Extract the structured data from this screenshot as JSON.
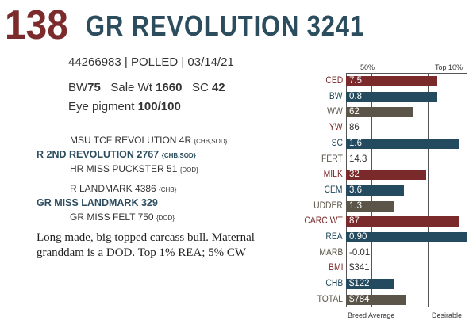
{
  "header": {
    "lot": "138",
    "name": "GR REVOLUTION 3241"
  },
  "meta": "44266983 | POLLED | 03/14/21",
  "epds": {
    "bw_label": "BW",
    "bw": "75",
    "sale_label": "Sale Wt",
    "sale": "1660",
    "sc_label": "SC",
    "sc": "42"
  },
  "eye": {
    "label": "Eye pigment",
    "value": "100/100"
  },
  "pedigree": [
    {
      "name": "MSU TCF REVOLUTION 4R",
      "tag": "{CHB,SOD}",
      "role": "gsire"
    },
    {
      "name": "R 2ND REVOLUTION 2767",
      "tag": "{CHB,SOD}",
      "role": "sire"
    },
    {
      "name": "HR MISS PUCKSTER 51",
      "tag": "{DOD}",
      "role": "gdam"
    },
    {
      "name": "R LANDMARK 4386",
      "tag": "{CHB}",
      "role": "gsire"
    },
    {
      "name": "GR MISS LANDMARK 329",
      "tag": "",
      "role": "dam"
    },
    {
      "name": "GR MISS FELT 750",
      "tag": "{DOD}",
      "role": "gdam"
    }
  ],
  "comment": "Long made, big topped carcass bull. Maternal granddam is a DOD. Top 1% REA; 5% CW",
  "chart_data": {
    "type": "bar",
    "header_left": "50%",
    "header_right": "Top 10%",
    "footer_left": "Breed Average",
    "footer_right": "Desirable",
    "colors": {
      "maroon": "#7a2a2a",
      "navy": "#234a5e",
      "olive": "#5a5548"
    },
    "traits": [
      {
        "label": "CED",
        "value": "7.5",
        "color": "maroon",
        "pct": 0.75
      },
      {
        "label": "BW",
        "value": "0.8",
        "color": "navy",
        "pct": 0.75
      },
      {
        "label": "WW",
        "value": "62",
        "color": "olive",
        "pct": 0.55
      },
      {
        "label": "YW",
        "value": "86",
        "color": "maroon",
        "pct": 0
      },
      {
        "label": "SC",
        "value": "1.6",
        "color": "navy",
        "pct": 0.93
      },
      {
        "label": "FERT",
        "value": "14.3",
        "color": "olive",
        "pct": 0
      },
      {
        "label": "MILK",
        "value": "32",
        "color": "maroon",
        "pct": 0.66
      },
      {
        "label": "CEM",
        "value": "3.6",
        "color": "navy",
        "pct": 0.48
      },
      {
        "label": "UDDER",
        "value": "1.3",
        "color": "olive",
        "pct": 0.4
      },
      {
        "label": "CARC WT",
        "value": "87",
        "color": "maroon",
        "pct": 0.93
      },
      {
        "label": "REA",
        "value": "0.90",
        "color": "navy",
        "pct": 1.0
      },
      {
        "label": "MARB",
        "value": "-0.01",
        "color": "olive",
        "pct": 0
      },
      {
        "label": "BMI",
        "value": "$341",
        "color": "maroon",
        "pct": 0
      },
      {
        "label": "CHB",
        "value": "$122",
        "color": "navy",
        "pct": 0.4
      },
      {
        "label": "TOTAL",
        "value": "$784",
        "color": "olive",
        "pct": 0.49
      }
    ]
  }
}
